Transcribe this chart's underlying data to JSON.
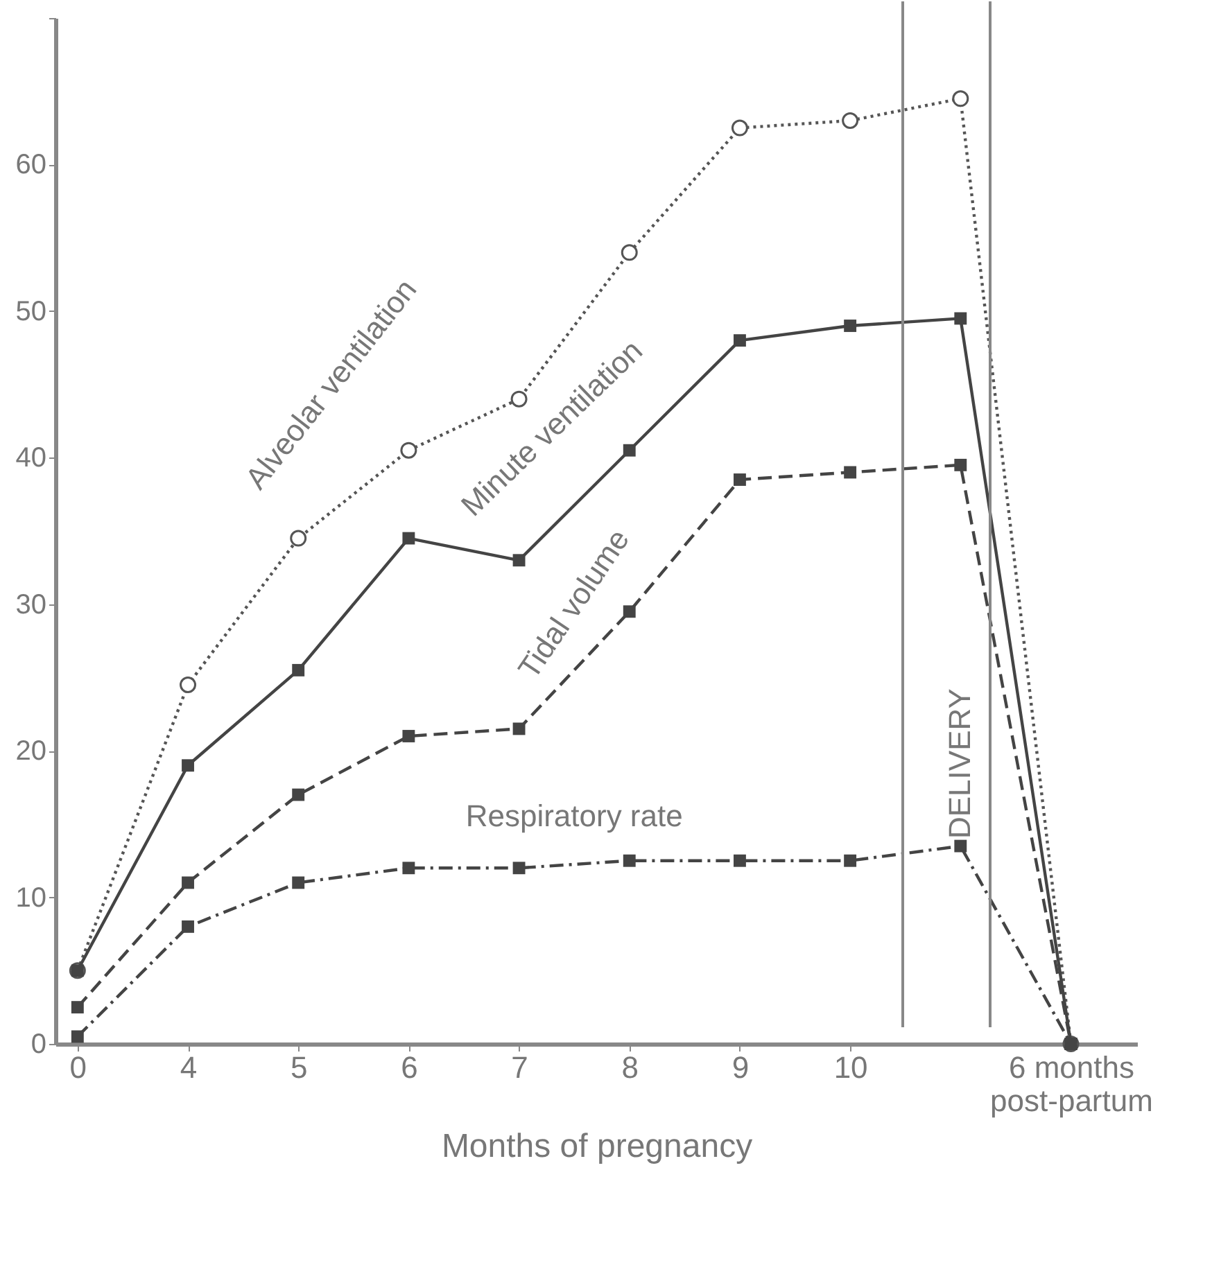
{
  "chart_data": {
    "type": "line",
    "xlabel": "Months of pregnancy",
    "categories": [
      "0",
      "4",
      "5",
      "6",
      "7",
      "8",
      "9",
      "10",
      null,
      "6 months post-partum"
    ],
    "series": [
      {
        "name": "Alveolar ventilation",
        "color": "#555555",
        "line_style": "dotted",
        "marker": "circle",
        "values": [
          5,
          24.5,
          34.5,
          40.5,
          44,
          54,
          62.5,
          63,
          64.5,
          0
        ]
      },
      {
        "name": "Minute ventilation",
        "color": "#444444",
        "line_style": "solid",
        "marker": "square",
        "values": [
          5,
          19,
          25.5,
          34.5,
          33,
          40.5,
          48,
          49,
          49.5,
          0
        ]
      },
      {
        "name": "Tidal volume",
        "color": "#444444",
        "line_style": "dashed",
        "marker": "square",
        "values": [
          2.5,
          11,
          17,
          21,
          21.5,
          29.5,
          38.5,
          39,
          39.5,
          0
        ]
      },
      {
        "name": "Respiratory rate",
        "color": "#444444",
        "line_style": "dashdot",
        "marker": "square",
        "values": [
          0.5,
          8,
          11,
          12,
          12,
          12.5,
          12.5,
          12.5,
          13.5,
          0
        ]
      }
    ],
    "annotations": [
      "DELIVERY"
    ],
    "ylim": [
      0,
      70
    ],
    "yticks": [
      0,
      10,
      20,
      30,
      40,
      50,
      60,
      {
        "value": 70,
        "label": null
      }
    ],
    "grid": false
  }
}
